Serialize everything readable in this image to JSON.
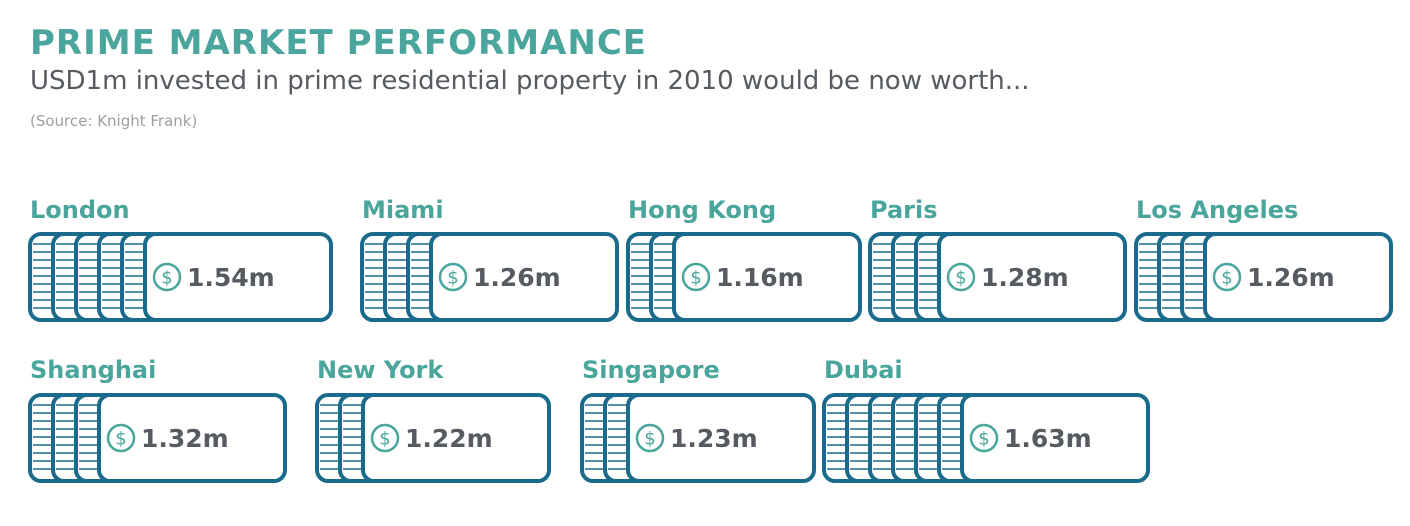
{
  "header": {
    "title": "PRIME MARKET PERFORMANCE",
    "subtitle": "USD1m invested in prime residential property in 2010 would be now worth...",
    "source": "(Source: Knight Frank)"
  },
  "colors": {
    "title": "#4aa59d",
    "card_stroke": "#1a6a8c",
    "text": "#555b60",
    "icon": "#4aa59d"
  },
  "icons": {
    "value_icon": "dollar-circle-icon",
    "stack": "banknote-stack-icon"
  },
  "chart_data": {
    "type": "pictograph",
    "title": "PRIME MARKET PERFORMANCE",
    "unit": "m",
    "currency_symbol": "$",
    "items": [
      {
        "city": "London",
        "value": 1.54,
        "label": "1.54m"
      },
      {
        "city": "Miami",
        "value": 1.26,
        "label": "1.26m"
      },
      {
        "city": "Hong Kong",
        "value": 1.16,
        "label": "1.16m"
      },
      {
        "city": "Paris",
        "value": 1.28,
        "label": "1.28m"
      },
      {
        "city": "Los Angeles",
        "value": 1.26,
        "label": "1.26m"
      },
      {
        "city": "Shanghai",
        "value": 1.32,
        "label": "1.32m"
      },
      {
        "city": "New York",
        "value": 1.22,
        "label": "1.22m"
      },
      {
        "city": "Singapore",
        "value": 1.23,
        "label": "1.23m"
      },
      {
        "city": "Dubai",
        "value": 1.63,
        "label": "1.63m"
      }
    ]
  }
}
